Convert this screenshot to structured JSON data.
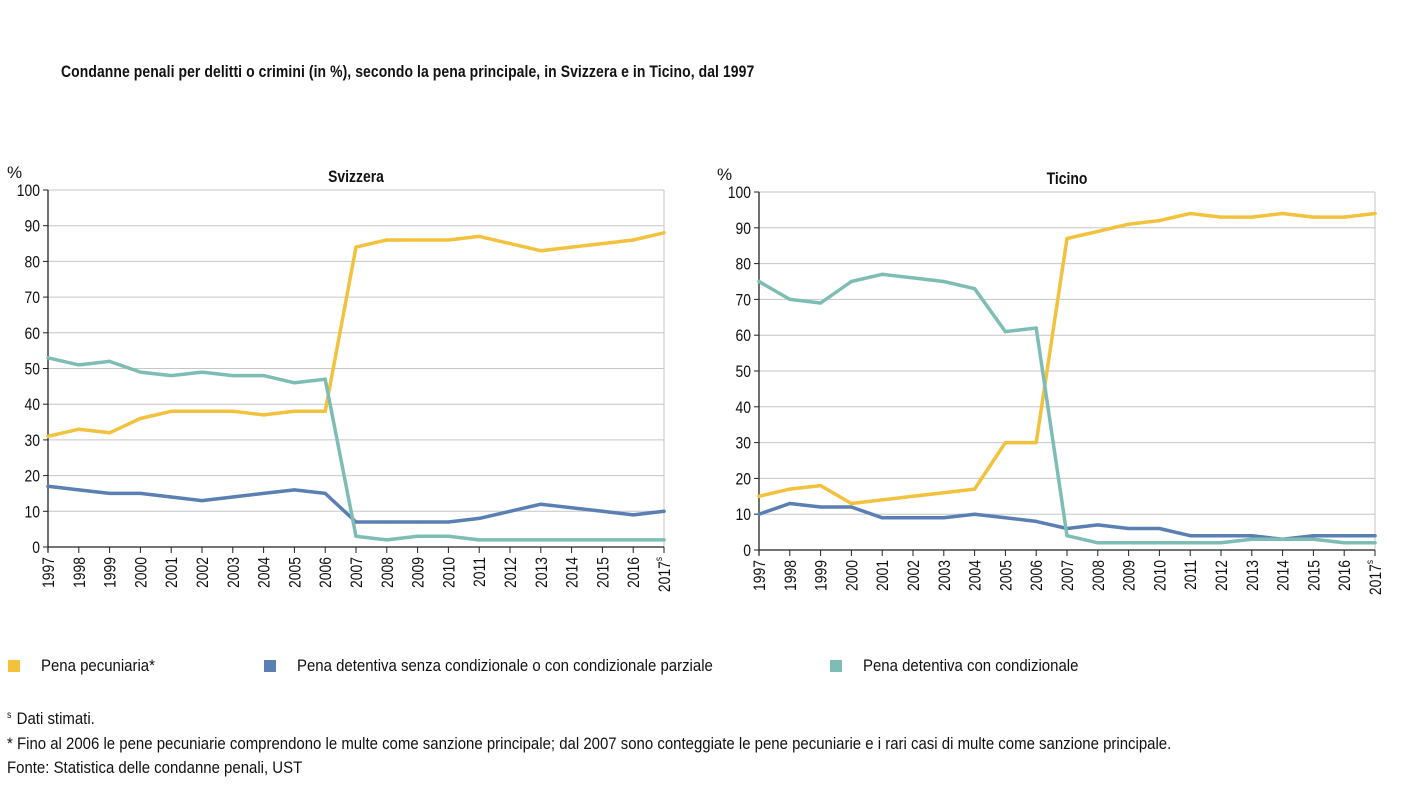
{
  "title": "Condanne penali per delitti o crimini (in %), secondo la pena principale, in Svizzera e in Ticino, dal 1997",
  "colors": {
    "pecuniaria": "#f2c23e",
    "detentiva_senza": "#5b7fb3",
    "detentiva_con": "#7dbdb4",
    "grid": "#c6c6c6",
    "axis": "#222222"
  },
  "chart_data": [
    {
      "type": "line",
      "title": "Svizzera",
      "ylabel": "%",
      "ylim": [
        0,
        100
      ],
      "yticks": [
        "0",
        "10",
        "20",
        "30",
        "40",
        "50",
        "60",
        "70",
        "80",
        "90",
        "100"
      ],
      "categories": [
        "1997",
        "1998",
        "1999",
        "2000",
        "2001",
        "2002",
        "2003",
        "2004",
        "2005",
        "2006",
        "2007",
        "2008",
        "2009",
        "2010",
        "2011",
        "2012",
        "2013",
        "2014",
        "2015",
        "2016",
        "2017"
      ],
      "last_label_suffix": "s",
      "series": [
        {
          "name": "Pena pecuniaria*",
          "color": "#f2c23e",
          "values": [
            31,
            33,
            32,
            36,
            38,
            38,
            38,
            37,
            38,
            38,
            84,
            86,
            86,
            86,
            87,
            85,
            83,
            84,
            85,
            86,
            88
          ]
        },
        {
          "name": "Pena detentiva senza condizionale o con condizionale parziale",
          "color": "#5b7fb3",
          "values": [
            17,
            16,
            15,
            15,
            14,
            13,
            14,
            15,
            16,
            15,
            7,
            7,
            7,
            7,
            8,
            10,
            12,
            11,
            10,
            9,
            10
          ]
        },
        {
          "name": "Pena detentiva con condizionale",
          "color": "#7dbdb4",
          "values": [
            53,
            51,
            52,
            49,
            48,
            49,
            48,
            48,
            46,
            47,
            3,
            2,
            3,
            3,
            2,
            2,
            2,
            2,
            2,
            2,
            2
          ]
        }
      ]
    },
    {
      "type": "line",
      "title": "Ticino",
      "ylabel": "%",
      "ylim": [
        0,
        100
      ],
      "yticks": [
        "0",
        "10",
        "20",
        "30",
        "40",
        "50",
        "60",
        "70",
        "80",
        "90",
        "100"
      ],
      "categories": [
        "1997",
        "1998",
        "1999",
        "2000",
        "2001",
        "2002",
        "2003",
        "2004",
        "2005",
        "2006",
        "2007",
        "2008",
        "2009",
        "2010",
        "2011",
        "2012",
        "2013",
        "2014",
        "2015",
        "2016",
        "2017"
      ],
      "last_label_suffix": "s",
      "series": [
        {
          "name": "Pena pecuniaria*",
          "color": "#f2c23e",
          "values": [
            15,
            17,
            18,
            13,
            14,
            15,
            16,
            17,
            30,
            30,
            87,
            89,
            91,
            92,
            94,
            93,
            93,
            94,
            93,
            93,
            94
          ]
        },
        {
          "name": "Pena detentiva senza condizionale o con condizionale parziale",
          "color": "#5b7fb3",
          "values": [
            10,
            13,
            12,
            12,
            9,
            9,
            9,
            10,
            9,
            8,
            6,
            7,
            6,
            6,
            4,
            4,
            4,
            3,
            4,
            4,
            4
          ]
        },
        {
          "name": "Pena detentiva con condizionale",
          "color": "#7dbdb4",
          "values": [
            75,
            70,
            69,
            75,
            77,
            76,
            75,
            73,
            61,
            62,
            4,
            2,
            2,
            2,
            2,
            2,
            3,
            3,
            3,
            2,
            2
          ]
        }
      ]
    }
  ],
  "legend": [
    {
      "label": "Pena pecuniaria*",
      "color": "#f2c23e"
    },
    {
      "label": "Pena detentiva senza condizionale o con condizionale parziale",
      "color": "#5b7fb3"
    },
    {
      "label": "Pena detentiva con condizionale",
      "color": "#7dbdb4"
    }
  ],
  "notes": {
    "footnote_marker": "s",
    "footnote_stimati": "Dati stimati.",
    "footnote_pecuniarie": "* Fino al 2006 le pene pecuniarie comprendono le multe come sanzione principale; dal 2007 sono conteggiate le pene pecuniarie e i rari casi di multe come sanzione principale.",
    "source": "Fonte: Statistica delle condanne penali, UST"
  }
}
